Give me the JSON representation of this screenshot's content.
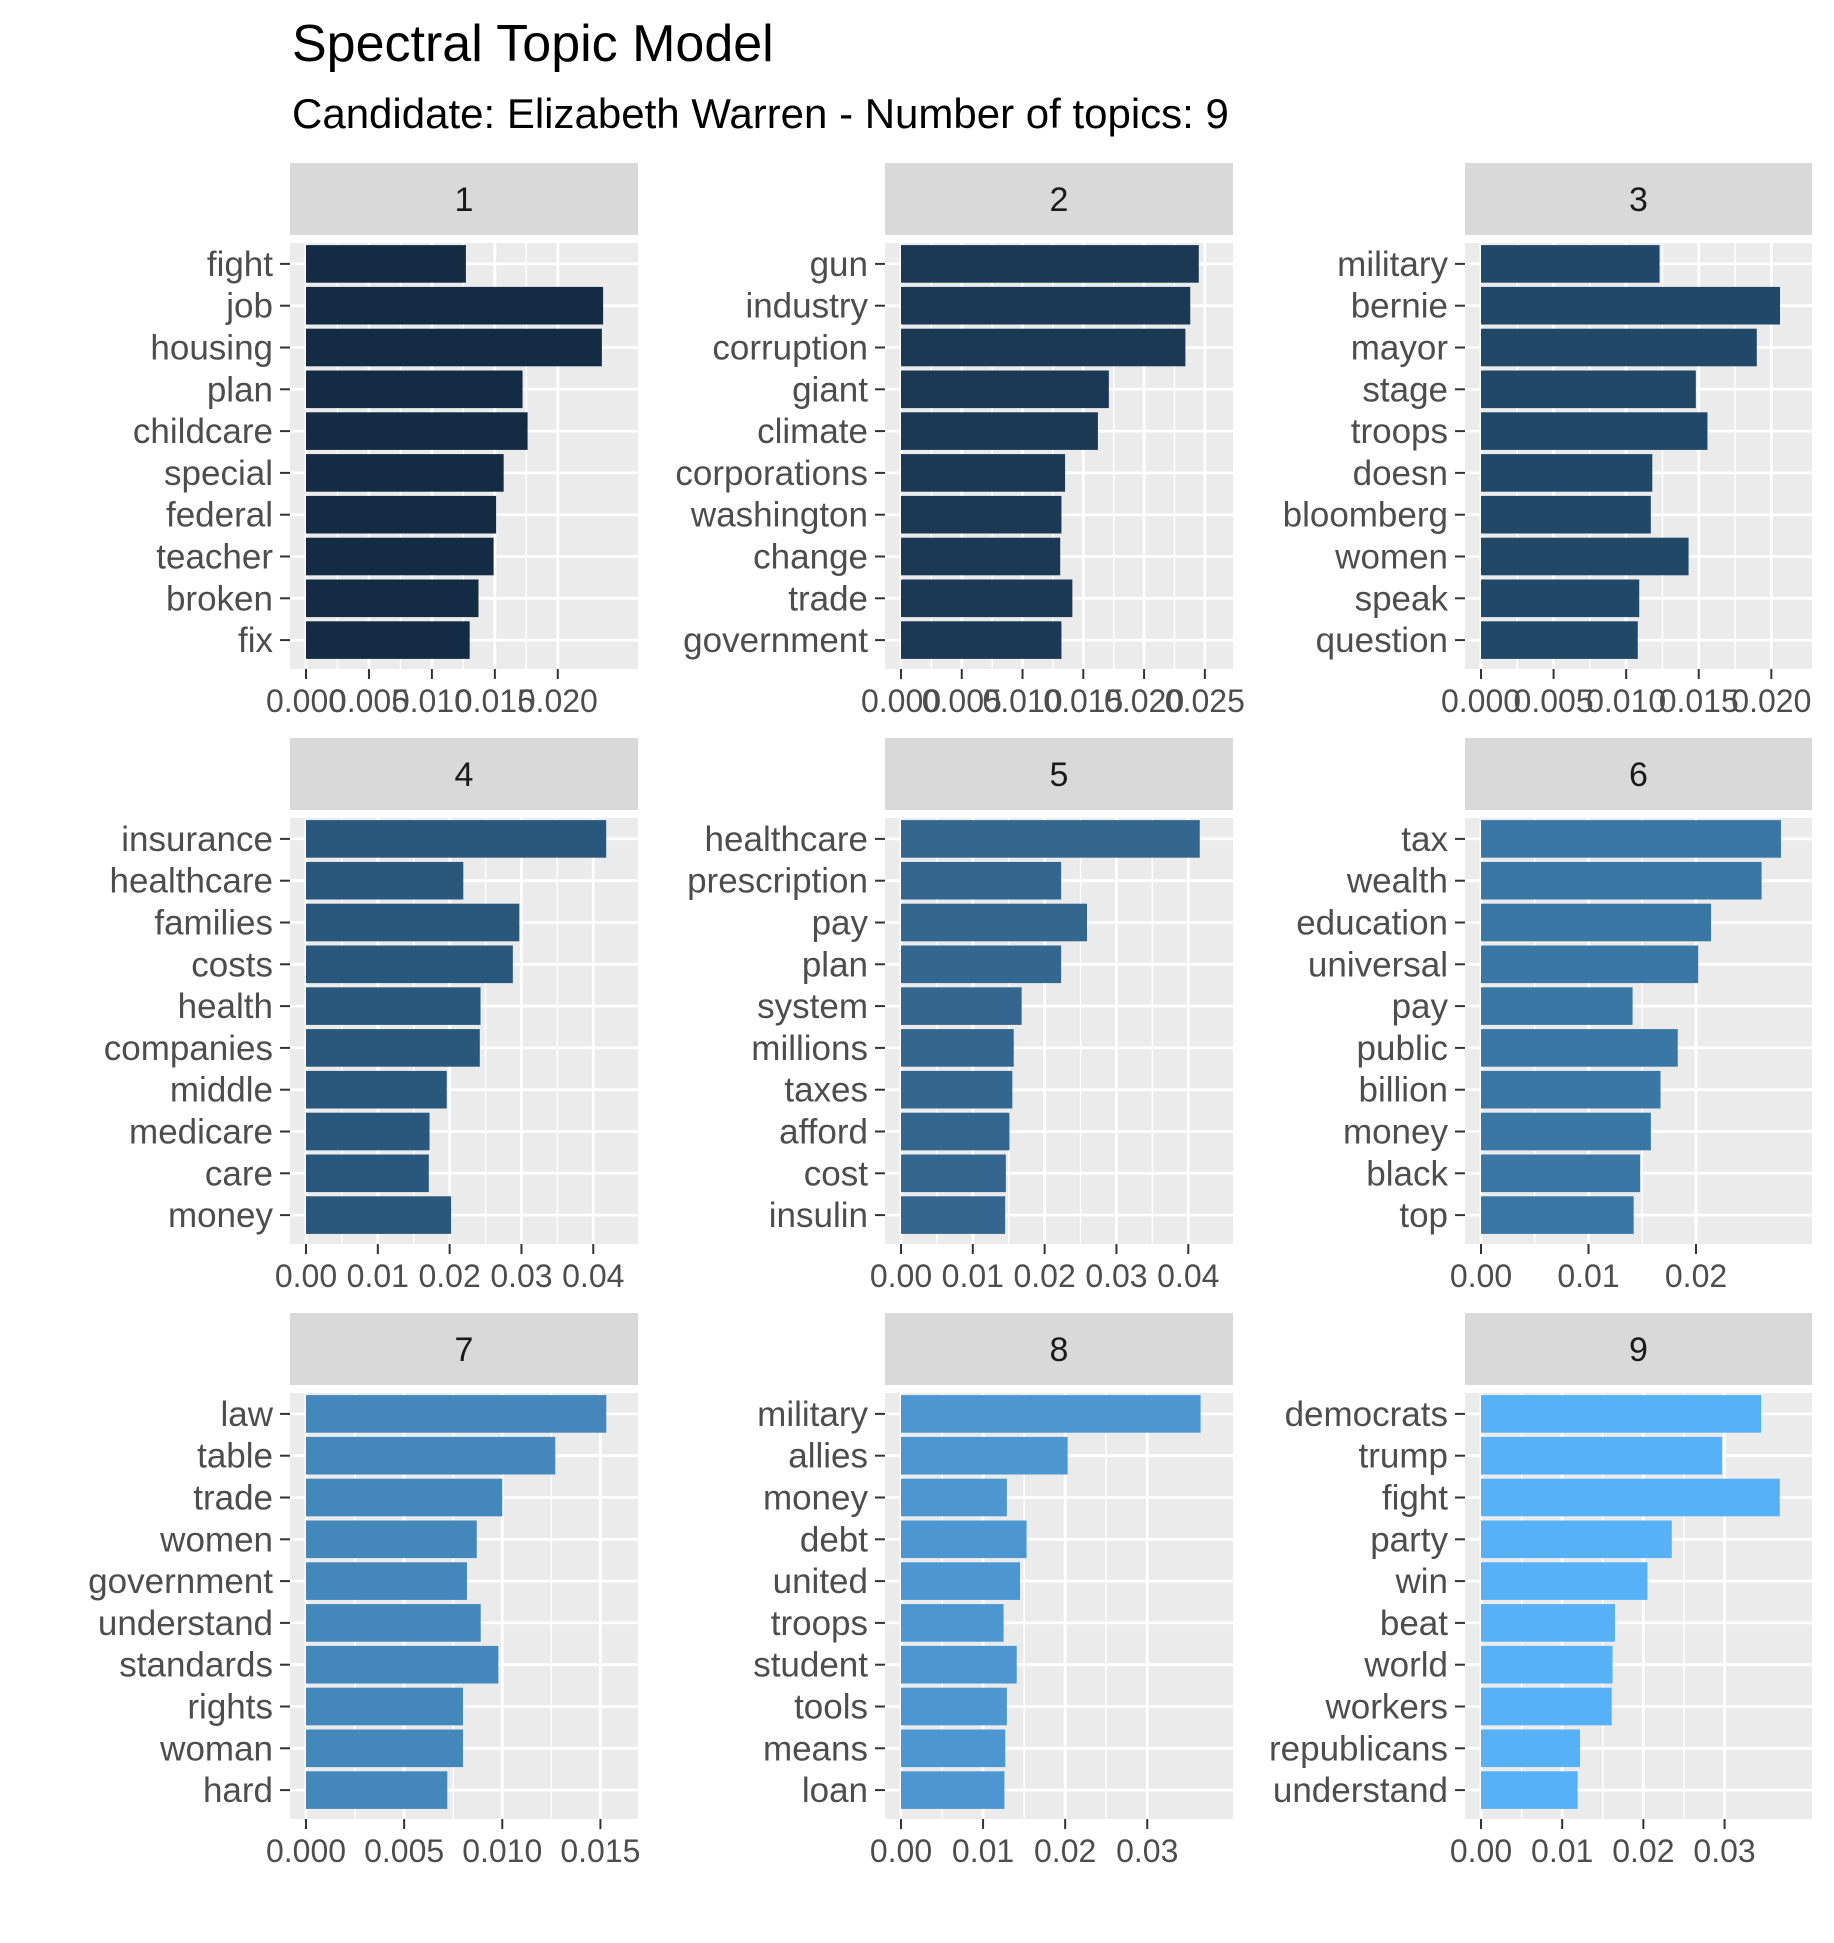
{
  "title": "Spectral Topic Model",
  "subtitle": "Candidate: Elizabeth Warren - Number of topics: 9",
  "chart_data": [
    {
      "type": "bar",
      "orientation": "horizontal",
      "panel": "1",
      "color": "#132B43",
      "categories": [
        "fight",
        "job",
        "housing",
        "plan",
        "childcare",
        "special",
        "federal",
        "teacher",
        "broken",
        "fix"
      ],
      "values": [
        0.0127,
        0.0236,
        0.0235,
        0.0172,
        0.0176,
        0.0157,
        0.0151,
        0.0149,
        0.0137,
        0.013
      ],
      "xlim": [
        0.0,
        0.0251
      ],
      "ticks": [
        0.0,
        0.005,
        0.01,
        0.015,
        0.02
      ],
      "tick_labels": [
        "0.000",
        "0.005",
        "0.010",
        "0.015",
        "0.020"
      ]
    },
    {
      "type": "bar",
      "orientation": "horizontal",
      "panel": "2",
      "color": "#1B3955",
      "categories": [
        "gun",
        "industry",
        "corruption",
        "giant",
        "climate",
        "corporations",
        "washington",
        "change",
        "trade",
        "government"
      ],
      "values": [
        0.0245,
        0.0238,
        0.0234,
        0.0171,
        0.0162,
        0.0135,
        0.0132,
        0.0131,
        0.0141,
        0.0132
      ],
      "xlim": [
        0.0,
        0.026
      ],
      "ticks": [
        0.0,
        0.005,
        0.01,
        0.015,
        0.02,
        0.025
      ],
      "tick_labels": [
        "0.000",
        "0.005",
        "0.010",
        "0.015",
        "0.020",
        "0.025"
      ]
    },
    {
      "type": "bar",
      "orientation": "horizontal",
      "panel": "3",
      "color": "#224868",
      "categories": [
        "military",
        "bernie",
        "mayor",
        "stage",
        "troops",
        "doesn",
        "bloomberg",
        "women",
        "speak",
        "question"
      ],
      "values": [
        0.0123,
        0.0206,
        0.019,
        0.0148,
        0.0156,
        0.0118,
        0.0117,
        0.0143,
        0.0109,
        0.0108
      ],
      "xlim": [
        0.0,
        0.0217
      ],
      "ticks": [
        0.0,
        0.005,
        0.01,
        0.015,
        0.02
      ],
      "tick_labels": [
        "0.000",
        "0.005",
        "0.010",
        "0.015",
        "0.020"
      ]
    },
    {
      "type": "bar",
      "orientation": "horizontal",
      "panel": "4",
      "color": "#2A577C",
      "categories": [
        "insurance",
        "healthcare",
        "families",
        "costs",
        "health",
        "companies",
        "middle",
        "medicare",
        "care",
        "money"
      ],
      "values": [
        0.0418,
        0.0219,
        0.0297,
        0.0288,
        0.0243,
        0.0242,
        0.0196,
        0.0172,
        0.0171,
        0.0202
      ],
      "xlim": [
        0.0,
        0.044
      ],
      "ticks": [
        0.0,
        0.01,
        0.02,
        0.03,
        0.04
      ],
      "tick_labels": [
        "0.00",
        "0.01",
        "0.02",
        "0.03",
        "0.04"
      ]
    },
    {
      "type": "bar",
      "orientation": "horizontal",
      "panel": "5",
      "color": "#336790",
      "categories": [
        "healthcare",
        "prescription",
        "pay",
        "plan",
        "system",
        "millions",
        "taxes",
        "afford",
        "cost",
        "insulin"
      ],
      "values": [
        0.0416,
        0.0223,
        0.0259,
        0.0223,
        0.0168,
        0.0157,
        0.0155,
        0.0151,
        0.0146,
        0.0145
      ],
      "xlim": [
        0.0,
        0.044
      ],
      "ticks": [
        0.0,
        0.01,
        0.02,
        0.03,
        0.04
      ],
      "tick_labels": [
        "0.00",
        "0.01",
        "0.02",
        "0.03",
        "0.04"
      ]
    },
    {
      "type": "bar",
      "orientation": "horizontal",
      "panel": "6",
      "color": "#3B77A5",
      "categories": [
        "tax",
        "wealth",
        "education",
        "universal",
        "pay",
        "public",
        "billion",
        "money",
        "black",
        "top"
      ],
      "values": [
        0.0279,
        0.0261,
        0.0214,
        0.0202,
        0.0141,
        0.0183,
        0.0167,
        0.0158,
        0.0148,
        0.0142
      ],
      "xlim": [
        0.0,
        0.0293
      ],
      "ticks": [
        0.0,
        0.01,
        0.02
      ],
      "tick_labels": [
        "0.00",
        "0.01",
        "0.02"
      ]
    },
    {
      "type": "bar",
      "orientation": "horizontal",
      "panel": "7",
      "color": "#4387BB",
      "categories": [
        "law",
        "table",
        "trade",
        "women",
        "government",
        "understand",
        "standards",
        "rights",
        "woman",
        "hard"
      ],
      "values": [
        0.0153,
        0.0127,
        0.01,
        0.0087,
        0.0082,
        0.0089,
        0.0098,
        0.008,
        0.008,
        0.0072
      ],
      "xlim": [
        0.0,
        0.0161
      ],
      "ticks": [
        0.0,
        0.005,
        0.01,
        0.015
      ],
      "tick_labels": [
        "0.000",
        "0.005",
        "0.010",
        "0.015"
      ]
    },
    {
      "type": "bar",
      "orientation": "horizontal",
      "panel": "8",
      "color": "#4C97D1",
      "categories": [
        "military",
        "allies",
        "money",
        "debt",
        "united",
        "troops",
        "student",
        "tools",
        "means",
        "loan"
      ],
      "values": [
        0.0365,
        0.0203,
        0.0129,
        0.0153,
        0.0145,
        0.0125,
        0.0141,
        0.0129,
        0.0127,
        0.0126
      ],
      "xlim": [
        0.0,
        0.0385
      ],
      "ticks": [
        0.0,
        0.01,
        0.02,
        0.03
      ],
      "tick_labels": [
        "0.00",
        "0.01",
        "0.02",
        "0.03"
      ]
    },
    {
      "type": "bar",
      "orientation": "horizontal",
      "panel": "9",
      "color": "#56B1F7",
      "categories": [
        "democrats",
        "trump",
        "fight",
        "party",
        "win",
        "beat",
        "world",
        "workers",
        "republicans",
        "understand"
      ],
      "values": [
        0.0345,
        0.0297,
        0.0368,
        0.0235,
        0.0205,
        0.0165,
        0.0162,
        0.0161,
        0.0122,
        0.0119
      ],
      "xlim": [
        0.0,
        0.0388
      ],
      "ticks": [
        0.0,
        0.01,
        0.02,
        0.03
      ],
      "tick_labels": [
        "0.00",
        "0.01",
        "0.02",
        "0.03"
      ]
    }
  ]
}
